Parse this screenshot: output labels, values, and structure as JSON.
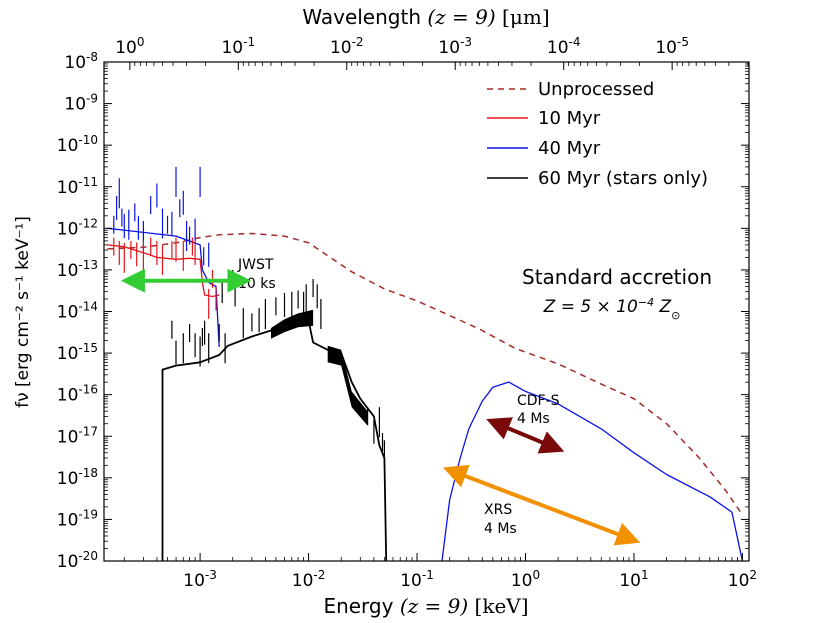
{
  "chart_data": {
    "type": "line",
    "xlabel_prefix": "Energy ",
    "xlabel_math": "(z = 9)",
    "xlabel_unit": " [keV]",
    "top_xlabel_prefix": "Wavelength ",
    "top_xlabel_math": "(z = 9)",
    "top_xlabel_unit": " [μm]",
    "ylabel": "fν [erg cm⁻² s⁻¹ keV⁻¹]",
    "xscale": "log",
    "yscale": "log",
    "xlim": [
      0.00013,
      115
    ],
    "ylim": [
      1e-20,
      1e-08
    ],
    "x_ticks": [
      {
        "value": 0.001,
        "base": "10",
        "exp": "-3"
      },
      {
        "value": 0.01,
        "base": "10",
        "exp": "-2"
      },
      {
        "value": 0.1,
        "base": "10",
        "exp": "-1"
      },
      {
        "value": 1,
        "base": "10",
        "exp": "0"
      },
      {
        "value": 10,
        "base": "10",
        "exp": "1"
      },
      {
        "value": 100,
        "base": "10",
        "exp": "2"
      }
    ],
    "top_ticks": [
      {
        "energy": 0.000225,
        "base": "10",
        "exp": "0"
      },
      {
        "energy": 0.00225,
        "base": "10",
        "exp": "-1"
      },
      {
        "energy": 0.0225,
        "base": "10",
        "exp": "-2"
      },
      {
        "energy": 0.225,
        "base": "10",
        "exp": "-3"
      },
      {
        "energy": 2.25,
        "base": "10",
        "exp": "-4"
      },
      {
        "energy": 22.5,
        "base": "10",
        "exp": "-5"
      }
    ],
    "y_ticks": [
      {
        "value": 1e-08,
        "base": "10",
        "exp": "-8"
      },
      {
        "value": 1e-09,
        "base": "10",
        "exp": "-9"
      },
      {
        "value": 1e-10,
        "base": "10",
        "exp": "-10"
      },
      {
        "value": 1e-11,
        "base": "10",
        "exp": "-11"
      },
      {
        "value": 1e-12,
        "base": "10",
        "exp": "-12"
      },
      {
        "value": 1e-13,
        "base": "10",
        "exp": "-13"
      },
      {
        "value": 1e-14,
        "base": "10",
        "exp": "-14"
      },
      {
        "value": 1e-15,
        "base": "10",
        "exp": "-15"
      },
      {
        "value": 1e-16,
        "base": "10",
        "exp": "-16"
      },
      {
        "value": 1e-17,
        "base": "10",
        "exp": "-17"
      },
      {
        "value": 1e-18,
        "base": "10",
        "exp": "-18"
      },
      {
        "value": 1e-19,
        "base": "10",
        "exp": "-19"
      },
      {
        "value": 1e-20,
        "base": "10",
        "exp": "-20"
      }
    ],
    "legend": {
      "location": "top-right",
      "entries": [
        {
          "label": "Unprocessed",
          "color": "#a52a2a",
          "style": "dashed"
        },
        {
          "label": "10 Myr",
          "color": "#e8141c",
          "style": "solid"
        },
        {
          "label": "40 Myr",
          "color": "#0a14e0",
          "style": "solid"
        },
        {
          "label": "60 Myr (stars only)",
          "color": "#000000",
          "style": "solid"
        }
      ]
    },
    "series": [
      {
        "name": "Unprocessed",
        "color": "#a52a2a",
        "dash": "6,5",
        "width": 1.5,
        "points": [
          [
            0.00014,
            3.2e-13
          ],
          [
            0.0003,
            3.5e-13
          ],
          [
            0.0006,
            4.5e-13
          ],
          [
            0.001,
            6e-13
          ],
          [
            0.0015,
            7e-13
          ],
          [
            0.003,
            7.5e-13
          ],
          [
            0.006,
            6.5e-13
          ],
          [
            0.01,
            4.5e-13
          ],
          [
            0.015,
            2.2e-13
          ],
          [
            0.025,
            9e-14
          ],
          [
            0.05,
            3.5e-14
          ],
          [
            0.1,
            1.8e-14
          ],
          [
            0.2,
            8e-15
          ],
          [
            0.4,
            3.5e-15
          ],
          [
            0.8,
            1.3e-15
          ],
          [
            2,
            5.5e-16
          ],
          [
            5,
            1.8e-16
          ],
          [
            10,
            8e-17
          ],
          [
            20,
            2e-17
          ],
          [
            40,
            3e-18
          ],
          [
            70,
            5e-19
          ],
          [
            100,
            1.3e-19
          ]
        ]
      },
      {
        "name": "10 Myr",
        "color": "#e8141c",
        "dash": "",
        "width": 1.3,
        "points": [
          [
            0.00014,
            4e-13
          ],
          [
            0.0002,
            3.6e-13
          ],
          [
            0.0003,
            2.6e-13
          ],
          [
            0.0004,
            2e-13
          ],
          [
            0.0006,
            1.8e-13
          ],
          [
            0.0008,
            1.9e-13
          ],
          [
            0.001,
            1.8e-13
          ],
          [
            0.00105,
            5e-14
          ],
          [
            0.0011,
            2.5e-14
          ],
          [
            0.0013,
            2.3e-14
          ],
          [
            0.0015,
            2.5e-14
          ]
        ]
      },
      {
        "name": "40 Myr",
        "color": "#0a14e0",
        "dash": "",
        "width": 1.3,
        "points": [
          [
            0.00014,
            1e-12
          ],
          [
            0.0003,
            8e-13
          ],
          [
            0.0006,
            6.5e-13
          ],
          [
            0.001,
            4e-13
          ],
          [
            0.00105,
            1e-13
          ],
          [
            0.0012,
            5e-14
          ],
          [
            0.0014,
            4e-14
          ],
          [
            0.0015,
            1.4e-15
          ]
        ]
      },
      {
        "name": "40 Myr X-ray",
        "color": "#0a14e0",
        "dash": "",
        "width": 1.3,
        "points": [
          [
            0.17,
            1e-20
          ],
          [
            0.2,
            3e-19
          ],
          [
            0.25,
            3e-18
          ],
          [
            0.3,
            1.5e-17
          ],
          [
            0.4,
            7e-17
          ],
          [
            0.5,
            1.5e-16
          ],
          [
            0.7,
            2e-16
          ],
          [
            1,
            1.2e-16
          ],
          [
            2,
            6e-17
          ],
          [
            5,
            1.5e-17
          ],
          [
            10,
            4e-18
          ],
          [
            20,
            1.2e-18
          ],
          [
            50,
            3.5e-19
          ],
          [
            80,
            1.5e-19
          ],
          [
            100,
            1e-20
          ]
        ]
      },
      {
        "name": "60 Myr (stars only)",
        "color": "#000000",
        "dash": "",
        "width": 1.8,
        "points": [
          [
            0.00045,
            1e-20
          ],
          [
            0.00045,
            4e-16
          ],
          [
            0.0006,
            5e-16
          ],
          [
            0.001,
            6e-16
          ],
          [
            0.0015,
            9e-16
          ],
          [
            0.0018,
            1.5e-15
          ],
          [
            0.003,
            2.5e-15
          ],
          [
            0.0045,
            3.5e-15
          ],
          [
            0.006,
            4.5e-15
          ],
          [
            0.008,
            6e-15
          ],
          [
            0.01,
            6e-15
          ],
          [
            0.011,
            1.8e-15
          ],
          [
            0.015,
            1.2e-15
          ],
          [
            0.02,
            1e-15
          ],
          [
            0.025,
            2e-16
          ],
          [
            0.03,
            8e-17
          ],
          [
            0.04,
            3e-17
          ],
          [
            0.045,
            6e-18
          ],
          [
            0.05,
            3e-18
          ],
          [
            0.052,
            1e-20
          ]
        ]
      }
    ],
    "spikes": [
      {
        "color": "#0a14e0",
        "width": 1.2,
        "lines": [
          [
            0.00016,
            2e-12
          ],
          [
            0.00017,
            6e-12
          ],
          [
            0.00018,
            1.6e-11
          ],
          [
            0.00019,
            3e-12
          ],
          [
            0.0002,
            2.2e-12
          ],
          [
            0.00022,
            2.8e-12
          ],
          [
            0.00025,
            4e-12
          ],
          [
            0.00027,
            2e-12
          ],
          [
            0.0003,
            1.5e-12
          ],
          [
            0.00035,
            6e-12
          ],
          [
            0.0004,
            1.2e-11
          ],
          [
            0.00045,
            3e-12
          ],
          [
            0.0005,
            2e-12
          ],
          [
            0.00055,
            2.5e-12
          ],
          [
            0.0006,
            3e-11
          ],
          [
            0.00065,
            5e-12
          ],
          [
            0.0007,
            8e-12
          ],
          [
            0.00075,
            1.5e-12
          ],
          [
            0.0008,
            1.1e-12
          ],
          [
            0.0009,
            1.7e-12
          ],
          [
            0.001,
            3e-11
          ],
          [
            0.00108,
            3.5e-13
          ],
          [
            0.0012,
            4.5e-13
          ]
        ]
      },
      {
        "color": "#e8141c",
        "width": 1.2,
        "lines": [
          [
            0.00016,
            6e-13
          ],
          [
            0.00018,
            5e-13
          ],
          [
            0.0002,
            4.5e-13
          ],
          [
            0.00023,
            5e-13
          ],
          [
            0.00026,
            4.6e-13
          ],
          [
            0.0003,
            5e-13
          ],
          [
            0.00035,
            6e-13
          ],
          [
            0.0004,
            5e-13
          ],
          [
            0.00045,
            4e-13
          ],
          [
            0.00055,
            5e-13
          ],
          [
            0.0006,
            6e-13
          ],
          [
            0.0007,
            5e-13
          ],
          [
            0.00085,
            6e-13
          ],
          [
            0.0009,
            5e-13
          ],
          [
            0.0012,
            3.5e-14
          ],
          [
            0.0013,
            1e-13
          ],
          [
            0.0014,
            4e-14
          ]
        ]
      },
      {
        "color": "#000000",
        "width": 1.2,
        "lines": [
          [
            0.00055,
            6e-15
          ],
          [
            0.0006,
            2e-15
          ],
          [
            0.0007,
            3e-15
          ],
          [
            0.0008,
            5e-15
          ],
          [
            0.0009,
            3e-15
          ],
          [
            0.001,
            2.5e-15
          ],
          [
            0.00105,
            4e-15
          ],
          [
            0.0011,
            6e-15
          ],
          [
            0.0012,
            3e-15
          ],
          [
            0.0015,
            5e-15
          ],
          [
            0.0016,
            6e-14
          ],
          [
            0.0017,
            3e-15
          ],
          [
            0.002,
            1e-13
          ],
          [
            0.0021,
            5e-14
          ],
          [
            0.0025,
            1.2e-14
          ],
          [
            0.003,
            9e-15
          ],
          [
            0.0035,
            1.2e-14
          ],
          [
            0.004,
            2e-14
          ],
          [
            0.005,
            2.2e-14
          ],
          [
            0.006,
            2.8e-14
          ],
          [
            0.007,
            3e-14
          ],
          [
            0.008,
            3.2e-14
          ],
          [
            0.009,
            3e-14
          ],
          [
            0.0095,
            4.5e-14
          ],
          [
            0.011,
            6e-14
          ],
          [
            0.012,
            4.5e-14
          ],
          [
            0.013,
            2e-14
          ],
          [
            0.035,
            5e-17
          ],
          [
            0.04,
            2.5e-17
          ],
          [
            0.045,
            5e-17
          ],
          [
            0.048,
            1.2e-17
          ],
          [
            0.05,
            8e-18
          ]
        ]
      }
    ],
    "bands": [
      {
        "color": "#000000",
        "points_top": [
          [
            0.0045,
            4e-15
          ],
          [
            0.006,
            6.5e-15
          ],
          [
            0.008,
            9e-15
          ],
          [
            0.011,
            1.1e-14
          ]
        ],
        "points_bottom": [
          [
            0.0045,
            2.2e-15
          ],
          [
            0.006,
            3.2e-15
          ],
          [
            0.008,
            4.2e-15
          ],
          [
            0.011,
            4.5e-15
          ]
        ]
      },
      {
        "color": "#000000",
        "points_top": [
          [
            0.015,
            1.5e-15
          ],
          [
            0.02,
            1.2e-15
          ],
          [
            0.025,
            1.2e-16
          ],
          [
            0.035,
            4e-17
          ]
        ],
        "points_bottom": [
          [
            0.015,
            6e-16
          ],
          [
            0.02,
            5e-16
          ],
          [
            0.025,
            5e-17
          ],
          [
            0.035,
            1.8e-17
          ]
        ]
      }
    ],
    "arrows": [
      {
        "name": "JWST",
        "color": "#33cc33",
        "from": [
          0.00024,
          5.5e-14
        ],
        "to": [
          0.0023,
          5.5e-14
        ],
        "width": 4
      },
      {
        "name": "CDF-S",
        "color": "#7a0a0a",
        "from": [
          0.55,
          2e-17
        ],
        "to": [
          1.8,
          5.5e-18
        ],
        "width": 4
      },
      {
        "name": "XRS",
        "color": "#f29100",
        "from": [
          0.22,
          1.4e-18
        ],
        "to": [
          9,
          3.5e-20
        ],
        "width": 4
      }
    ],
    "annotations": {
      "jwst_line1": "JWST",
      "jwst_line2": "10 ks",
      "cdfs_line1": "CDF-S",
      "cdfs_line2": "4 Ms",
      "xrs_line1": "XRS",
      "xrs_line2": "4 Ms",
      "model_title": "Standard accretion",
      "metallicity_prefix": "Z = 5 × 10",
      "metallicity_exp": "−4",
      "metallicity_suffix": " Z",
      "metallicity_sub": "⊙"
    }
  }
}
